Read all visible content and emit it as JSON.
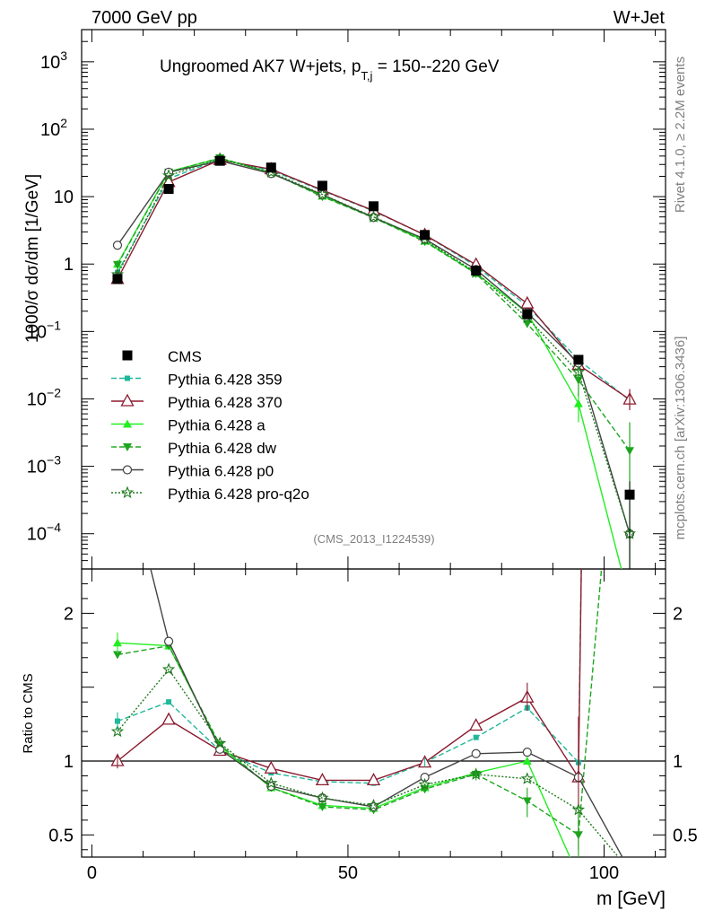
{
  "header": {
    "left": "7000 GeV pp",
    "right": "W+Jet"
  },
  "side": {
    "rivet": "Rivet 4.1.0, ≥ 2.2M events",
    "mcplots": "mcplots.cern.ch [arXiv:1306.3436]"
  },
  "chart_data": {
    "type": "line",
    "title_main": "Ungroomed AK7 W+jets, p",
    "title_sub": "T,j",
    "title_tail": " = 150--220 GeV",
    "analysis": "(CMS_2013_I1224539)",
    "ylabel_main": "1000/σ  dσ/dm [1/GeV]",
    "ylabel_ratio": "Ratio to CMS",
    "xlabel": "m [GeV]",
    "xlim": [
      -2,
      112
    ],
    "ylim_log": [
      3e-05,
      3000
    ],
    "ylim_ratio": [
      0.35,
      2.3
    ],
    "x_ticks": [
      0,
      50,
      100
    ],
    "x_tick_labels": [
      "0",
      "50",
      "100"
    ],
    "y_ticks_main": [
      {
        "exp": -4,
        "label": "10",
        "sup": "−4"
      },
      {
        "exp": -3,
        "label": "10",
        "sup": "−3"
      },
      {
        "exp": -2,
        "label": "10",
        "sup": "−2"
      },
      {
        "exp": -1,
        "label": "10",
        "sup": "−1"
      },
      {
        "exp": 0,
        "label": "1",
        "sup": ""
      },
      {
        "exp": 1,
        "label": "10",
        "sup": ""
      },
      {
        "exp": 2,
        "label": "10",
        "sup": "2"
      },
      {
        "exp": 3,
        "label": "10",
        "sup": "3"
      }
    ],
    "y_ticks_ratio": [
      {
        "v": 0.5,
        "label": "0.5"
      },
      {
        "v": 1,
        "label": "1"
      },
      {
        "v": 2,
        "label": "2"
      }
    ],
    "x": [
      5,
      15,
      25,
      35,
      45,
      55,
      65,
      75,
      85,
      95,
      105
    ],
    "data": {
      "name": "CMS",
      "values": [
        0.6,
        13,
        34,
        27,
        14.5,
        7.2,
        2.7,
        0.8,
        0.18,
        0.038,
        0.00038
      ]
    },
    "series": [
      {
        "name": "Pythia 6.428 359",
        "color": "#1fb89a",
        "dash": "6,3",
        "marker": "square-small",
        "values": [
          0.75,
          18.5,
          36,
          24.5,
          12.3,
          6.1,
          2.7,
          0.93,
          0.24,
          0.038,
          0.0095
        ],
        "ratio": [
          1.27,
          1.4,
          1.07,
          0.92,
          0.86,
          0.85,
          0.99,
          1.16,
          1.36,
          0.99,
          25
        ]
      },
      {
        "name": "Pythia 6.428 370",
        "color": "#8b1a2e",
        "dash": "",
        "marker": "triangle-open",
        "values": [
          0.6,
          16.5,
          35,
          25.5,
          12.5,
          6.2,
          2.7,
          0.98,
          0.26,
          0.032,
          0.0098
        ],
        "ratio": [
          1.0,
          1.28,
          1.07,
          0.95,
          0.87,
          0.87,
          0.99,
          1.24,
          1.43,
          0.89,
          26
        ]
      },
      {
        "name": "Pythia 6.428 a",
        "color": "#22ee22",
        "dash": "",
        "marker": "triangle-up",
        "values": [
          1.0,
          23.5,
          37,
          22.5,
          10.2,
          4.9,
          2.2,
          0.73,
          0.19,
          0.0085,
          1e-05
        ],
        "ratio": [
          1.8,
          1.78,
          1.1,
          0.82,
          0.7,
          0.68,
          0.82,
          0.92,
          1.0,
          0.22,
          0.02
        ]
      },
      {
        "name": "Pythia 6.428 dw",
        "color": "#1ea51e",
        "dash": "6,3",
        "marker": "triangle-down",
        "values": [
          0.98,
          23,
          37.5,
          22.5,
          10,
          4.85,
          2.15,
          0.72,
          0.13,
          0.019,
          0.0017
        ],
        "ratio": [
          1.72,
          1.78,
          1.11,
          0.82,
          0.69,
          0.67,
          0.81,
          0.91,
          0.73,
          0.5,
          4.5
        ]
      },
      {
        "name": "Pythia 6.428 p0",
        "color": "#444444",
        "dash": "",
        "marker": "circle-open",
        "values": [
          1.9,
          23,
          34,
          22,
          10.7,
          4.9,
          2.35,
          0.83,
          0.19,
          0.034,
          0.0001
        ],
        "ratio": [
          3.2,
          1.81,
          1.08,
          0.83,
          0.75,
          0.69,
          0.89,
          1.05,
          1.06,
          0.89,
          0.26
        ]
      },
      {
        "name": "Pythia 6.428 pro-q2o",
        "color": "#1e7a1e",
        "dash": "2,2",
        "marker": "star-open",
        "values": [
          0.7,
          20.5,
          36.5,
          23,
          10.8,
          5.0,
          2.3,
          0.75,
          0.16,
          0.025,
          0.0001
        ],
        "ratio": [
          1.2,
          1.62,
          1.12,
          0.85,
          0.75,
          0.7,
          0.84,
          0.91,
          0.88,
          0.67,
          0.26
        ]
      }
    ],
    "legend_position": "middle-left"
  }
}
